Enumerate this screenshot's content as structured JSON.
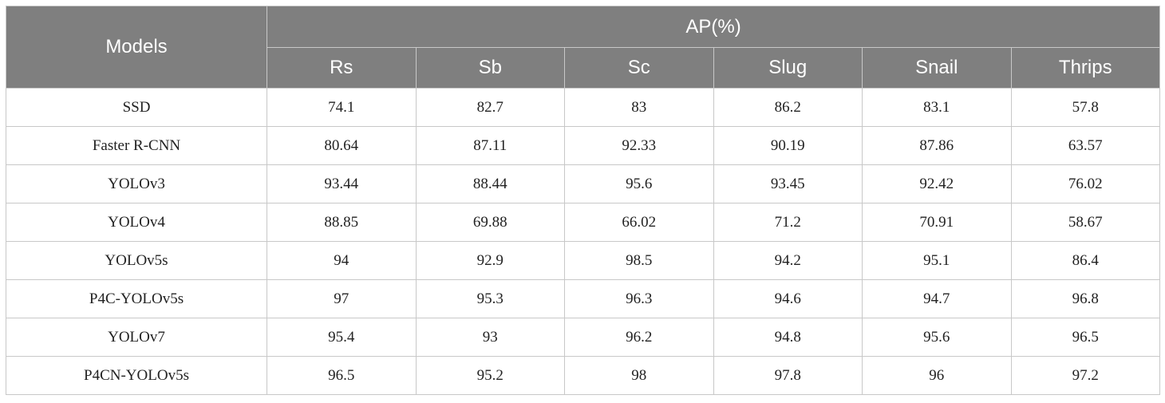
{
  "table": {
    "header": {
      "models_label": "Models",
      "group_label": "AP(%)",
      "columns": [
        "Rs",
        "Sb",
        "Sc",
        "Slug",
        "Snail",
        "Thrips"
      ]
    },
    "rows": [
      {
        "model": "SSD",
        "values": [
          "74.1",
          "82.7",
          "83",
          "86.2",
          "83.1",
          "57.8"
        ]
      },
      {
        "model": "Faster R-CNN",
        "values": [
          "80.64",
          "87.11",
          "92.33",
          "90.19",
          "87.86",
          "63.57"
        ]
      },
      {
        "model": "YOLOv3",
        "values": [
          "93.44",
          "88.44",
          "95.6",
          "93.45",
          "92.42",
          "76.02"
        ]
      },
      {
        "model": "YOLOv4",
        "values": [
          "88.85",
          "69.88",
          "66.02",
          "71.2",
          "70.91",
          "58.67"
        ]
      },
      {
        "model": "YOLOv5s",
        "values": [
          "94",
          "92.9",
          "98.5",
          "94.2",
          "95.1",
          "86.4"
        ]
      },
      {
        "model": "P4C-YOLOv5s",
        "values": [
          "97",
          "95.3",
          "96.3",
          "94.6",
          "94.7",
          "96.8"
        ]
      },
      {
        "model": "YOLOv7",
        "values": [
          "95.4",
          "93",
          "96.2",
          "94.8",
          "95.6",
          "96.5"
        ]
      },
      {
        "model": "P4CN-YOLOv5s",
        "values": [
          "96.5",
          "95.2",
          "98",
          "97.8",
          "96",
          "97.2"
        ]
      }
    ]
  }
}
